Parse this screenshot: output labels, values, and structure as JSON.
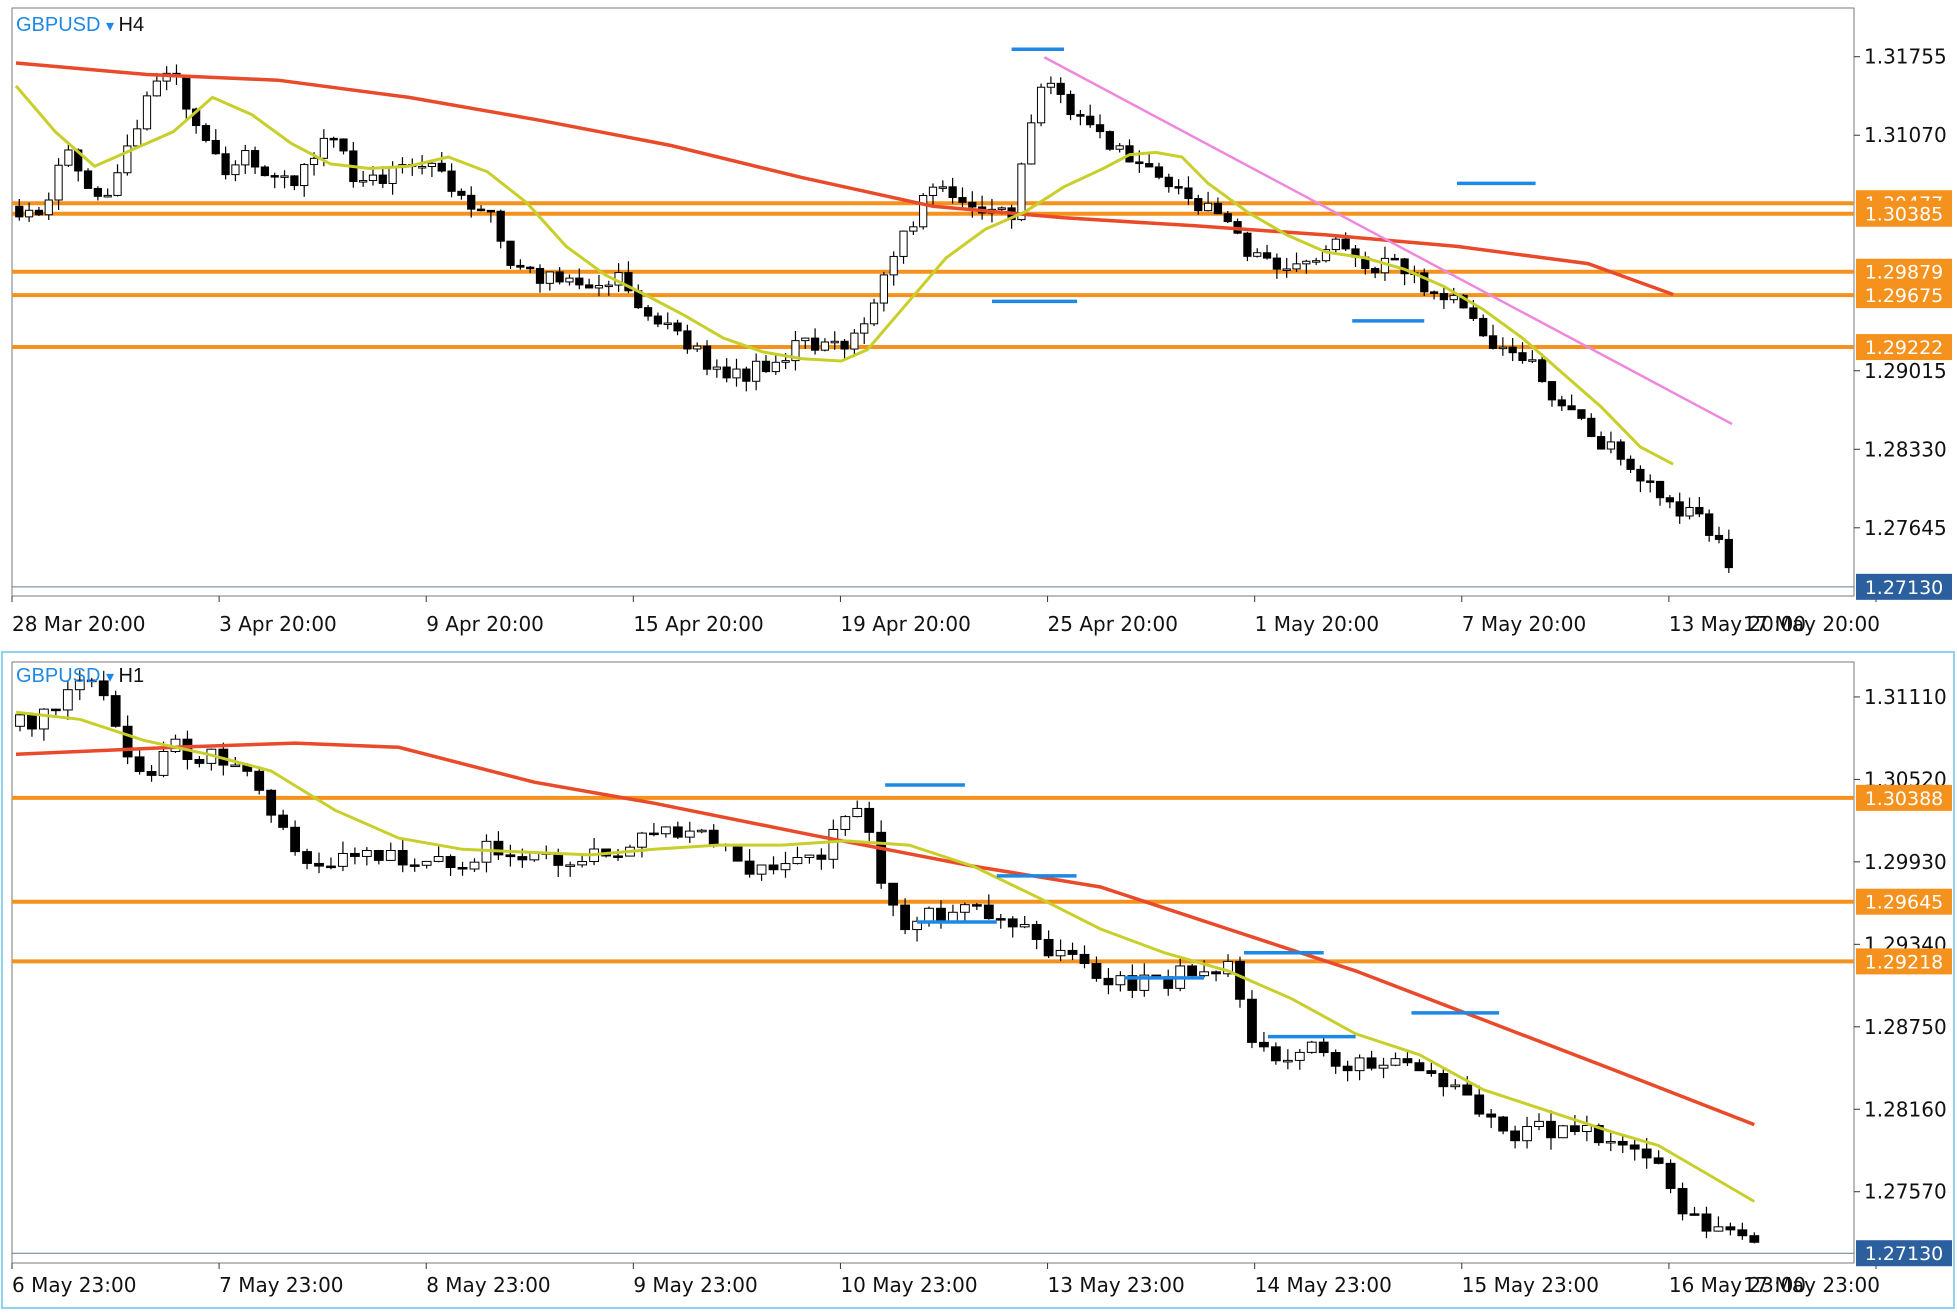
{
  "colors": {
    "accent_blue": "#1e88e5",
    "level_orange": "#f5921e",
    "ma_fast": "#c8cf2a",
    "ma_slow": "#e84a2a",
    "trendline": "#ee88dd",
    "price_badge": "#2b5f9e",
    "frame_active": "#8fd3f0"
  },
  "chart_data": [
    {
      "type": "candlestick",
      "symbol": "GBPUSD",
      "dropdown_icon": "triangle-down-icon",
      "timeframe": "H4",
      "x_tick_labels": [
        "28 Mar 20:00",
        "3 Apr 20:00",
        "9 Apr 20:00",
        "15 Apr 20:00",
        "19 Apr 20:00",
        "25 Apr 20:00",
        "1 May 20:00",
        "7 May 20:00",
        "13 May 20:00",
        "17 May 20:00"
      ],
      "y_tick_labels": [
        "1.31755",
        "1.31070",
        "1.29015",
        "1.28330",
        "1.27645"
      ],
      "ylim": [
        1.2705,
        1.3218
      ],
      "horizontal_levels": [
        "1.30477",
        "1.30385",
        "1.29879",
        "1.29675",
        "1.29222"
      ],
      "current_price": "1.27130",
      "close_path": [
        [
          0,
          1.3045
        ],
        [
          8,
          1.3028
        ],
        [
          16,
          1.31
        ],
        [
          24,
          1.305
        ],
        [
          32,
          1.3075
        ],
        [
          40,
          1.3148
        ],
        [
          48,
          1.3162
        ],
        [
          56,
          1.3115
        ],
        [
          64,
          1.307
        ],
        [
          72,
          1.3092
        ],
        [
          80,
          1.306
        ],
        [
          88,
          1.3078
        ],
        [
          96,
          1.3102
        ],
        [
          104,
          1.307
        ],
        [
          112,
          1.3072
        ],
        [
          120,
          1.309
        ],
        [
          128,
          1.3074
        ],
        [
          136,
          1.3058
        ],
        [
          144,
          1.304
        ],
        [
          152,
          1.299
        ],
        [
          160,
          1.2985
        ],
        [
          168,
          1.2986
        ],
        [
          176,
          1.2975
        ],
        [
          184,
          1.299
        ],
        [
          192,
          1.2945
        ],
        [
          200,
          1.2938
        ],
        [
          208,
          1.2915
        ],
        [
          216,
          1.2895
        ],
        [
          224,
          1.29
        ],
        [
          232,
          1.2912
        ],
        [
          240,
          1.293
        ],
        [
          248,
          1.292
        ],
        [
          256,
          1.2933
        ],
        [
          264,
          1.2975
        ],
        [
          272,
          1.3028
        ],
        [
          280,
          1.3058
        ],
        [
          288,
          1.3045
        ],
        [
          296,
          1.3035
        ],
        [
          304,
          1.3038
        ],
        [
          312,
          1.3155
        ],
        [
          320,
          1.314
        ],
        [
          328,
          1.3115
        ],
        [
          336,
          1.3092
        ],
        [
          344,
          1.3085
        ],
        [
          352,
          1.3065
        ],
        [
          360,
          1.3048
        ],
        [
          368,
          1.303
        ],
        [
          376,
          1.3005
        ],
        [
          384,
          1.2998
        ],
        [
          392,
          1.3
        ],
        [
          400,
          1.301
        ],
        [
          408,
          1.3005
        ],
        [
          416,
          1.299
        ],
        [
          424,
          1.2995
        ],
        [
          432,
          1.2965
        ],
        [
          440,
          1.296
        ],
        [
          448,
          1.294
        ],
        [
          456,
          1.2912
        ],
        [
          464,
          1.2905
        ],
        [
          472,
          1.287
        ],
        [
          480,
          1.285
        ],
        [
          488,
          1.283
        ],
        [
          496,
          1.2808
        ],
        [
          504,
          1.279
        ],
        [
          512,
          1.2775
        ],
        [
          520,
          1.2746
        ],
        [
          524,
          1.2713
        ]
      ],
      "ma_fast": [
        [
          0,
          1.315
        ],
        [
          12,
          1.311
        ],
        [
          24,
          1.308
        ],
        [
          36,
          1.3095
        ],
        [
          48,
          1.311
        ],
        [
          60,
          1.314
        ],
        [
          72,
          1.3125
        ],
        [
          84,
          1.31
        ],
        [
          96,
          1.3082
        ],
        [
          108,
          1.3078
        ],
        [
          120,
          1.308
        ],
        [
          132,
          1.3088
        ],
        [
          144,
          1.3075
        ],
        [
          156,
          1.3048
        ],
        [
          168,
          1.301
        ],
        [
          180,
          1.2985
        ],
        [
          192,
          1.2968
        ],
        [
          204,
          1.295
        ],
        [
          216,
          1.293
        ],
        [
          228,
          1.2918
        ],
        [
          240,
          1.2912
        ],
        [
          252,
          1.291
        ],
        [
          260,
          1.292
        ],
        [
          272,
          1.296
        ],
        [
          284,
          1.3
        ],
        [
          296,
          1.3025
        ],
        [
          308,
          1.304
        ],
        [
          320,
          1.3062
        ],
        [
          332,
          1.3078
        ],
        [
          340,
          1.309
        ],
        [
          348,
          1.3092
        ],
        [
          356,
          1.3088
        ],
        [
          364,
          1.3065
        ],
        [
          376,
          1.304
        ],
        [
          388,
          1.302
        ],
        [
          400,
          1.3005
        ],
        [
          412,
          1.3
        ],
        [
          424,
          1.299
        ],
        [
          436,
          1.2975
        ],
        [
          448,
          1.2955
        ],
        [
          460,
          1.293
        ],
        [
          472,
          1.29
        ],
        [
          484,
          1.287
        ],
        [
          496,
          1.2835
        ],
        [
          506,
          1.282
        ]
      ],
      "ma_slow": [
        [
          0,
          1.317
        ],
        [
          40,
          1.316
        ],
        [
          80,
          1.3155
        ],
        [
          120,
          1.314
        ],
        [
          160,
          1.312
        ],
        [
          200,
          1.3098
        ],
        [
          240,
          1.307
        ],
        [
          280,
          1.3045
        ],
        [
          320,
          1.3035
        ],
        [
          360,
          1.3028
        ],
        [
          400,
          1.302
        ],
        [
          440,
          1.301
        ],
        [
          480,
          1.2995
        ],
        [
          506,
          1.2968
        ]
      ],
      "trendline": [
        [
          314,
          1.3175
        ],
        [
          524,
          1.2855
        ]
      ],
      "marker_segments": [
        [
          304,
          320,
          1.3182
        ],
        [
          298,
          324,
          1.2962
        ],
        [
          440,
          464,
          1.3065
        ],
        [
          408,
          430,
          1.2945
        ]
      ]
    },
    {
      "type": "candlestick",
      "symbol": "GBPUSD",
      "dropdown_icon": "triangle-down-icon",
      "timeframe": "H1",
      "x_tick_labels": [
        "6 May 23:00",
        "7 May 23:00",
        "8 May 23:00",
        "9 May 23:00",
        "10 May 23:00",
        "13 May 23:00",
        "14 May 23:00",
        "15 May 23:00",
        "16 May 23:00",
        "17 May 23:00"
      ],
      "y_tick_labels": [
        "1.31110",
        "1.30520",
        "1.29930",
        "1.29340",
        "1.28750",
        "1.28160",
        "1.27570"
      ],
      "ylim": [
        1.2706,
        1.3136
      ],
      "horizontal_levels": [
        "1.30388",
        "1.29645",
        "1.29218"
      ],
      "current_price": "1.27130",
      "close_path": [
        [
          0,
          1.309
        ],
        [
          8,
          1.31
        ],
        [
          16,
          1.312
        ],
        [
          20,
          1.313
        ],
        [
          26,
          1.3085
        ],
        [
          32,
          1.305
        ],
        [
          40,
          1.3075
        ],
        [
          48,
          1.3068
        ],
        [
          56,
          1.306
        ],
        [
          62,
          1.304
        ],
        [
          70,
          1.3
        ],
        [
          80,
          1.2995
        ],
        [
          96,
          1.2995
        ],
        [
          104,
          1.2995
        ],
        [
          110,
          1.2985
        ],
        [
          120,
          1.3005
        ],
        [
          128,
          1.2998
        ],
        [
          140,
          1.2995
        ],
        [
          152,
          1.3
        ],
        [
          168,
          1.302
        ],
        [
          176,
          1.3008
        ],
        [
          184,
          1.299
        ],
        [
          192,
          1.2995
        ],
        [
          200,
          1.2995
        ],
        [
          210,
          1.3025
        ],
        [
          214,
          1.302
        ],
        [
          218,
          1.296
        ],
        [
          224,
          1.295
        ],
        [
          236,
          1.296
        ],
        [
          248,
          1.2952
        ],
        [
          260,
          1.293
        ],
        [
          272,
          1.2912
        ],
        [
          284,
          1.2905
        ],
        [
          296,
          1.2915
        ],
        [
          304,
          1.2915
        ],
        [
          310,
          1.287
        ],
        [
          316,
          1.285
        ],
        [
          324,
          1.286
        ],
        [
          330,
          1.2845
        ],
        [
          344,
          1.2848
        ],
        [
          352,
          1.2845
        ],
        [
          362,
          1.283
        ],
        [
          372,
          1.28
        ],
        [
          384,
          1.28
        ],
        [
          396,
          1.2797
        ],
        [
          404,
          1.279
        ],
        [
          412,
          1.277
        ],
        [
          418,
          1.2745
        ],
        [
          426,
          1.273
        ],
        [
          432,
          1.2725
        ],
        [
          436,
          1.272
        ]
      ],
      "ma_fast": [
        [
          0,
          1.31
        ],
        [
          16,
          1.3095
        ],
        [
          32,
          1.308
        ],
        [
          48,
          1.307
        ],
        [
          64,
          1.3058
        ],
        [
          80,
          1.303
        ],
        [
          96,
          1.301
        ],
        [
          112,
          1.3002
        ],
        [
          128,
          1.3
        ],
        [
          144,
          1.2998
        ],
        [
          160,
          1.3002
        ],
        [
          176,
          1.3005
        ],
        [
          192,
          1.3005
        ],
        [
          208,
          1.3008
        ],
        [
          224,
          1.3005
        ],
        [
          240,
          1.299
        ],
        [
          256,
          1.2968
        ],
        [
          272,
          1.2945
        ],
        [
          288,
          1.2928
        ],
        [
          304,
          1.2915
        ],
        [
          320,
          1.2895
        ],
        [
          336,
          1.287
        ],
        [
          352,
          1.2855
        ],
        [
          368,
          1.283
        ],
        [
          384,
          1.2815
        ],
        [
          400,
          1.28
        ],
        [
          412,
          1.279
        ],
        [
          424,
          1.277
        ],
        [
          436,
          1.275
        ]
      ],
      "ma_slow": [
        [
          0,
          1.307
        ],
        [
          40,
          1.3075
        ],
        [
          70,
          1.3078
        ],
        [
          96,
          1.3075
        ],
        [
          130,
          1.305
        ],
        [
          160,
          1.3035
        ],
        [
          200,
          1.3012
        ],
        [
          240,
          1.299
        ],
        [
          272,
          1.2975
        ],
        [
          304,
          1.2945
        ],
        [
          336,
          1.2915
        ],
        [
          368,
          1.288
        ],
        [
          400,
          1.2845
        ],
        [
          436,
          1.2805
        ]
      ],
      "marker_segments": [
        [
          218,
          238,
          1.3048
        ],
        [
          226,
          246,
          1.295
        ],
        [
          246,
          266,
          1.2983
        ],
        [
          278,
          298,
          1.291
        ],
        [
          308,
          328,
          1.2928
        ],
        [
          314,
          336,
          1.2868
        ],
        [
          350,
          372,
          1.2885
        ]
      ]
    }
  ]
}
